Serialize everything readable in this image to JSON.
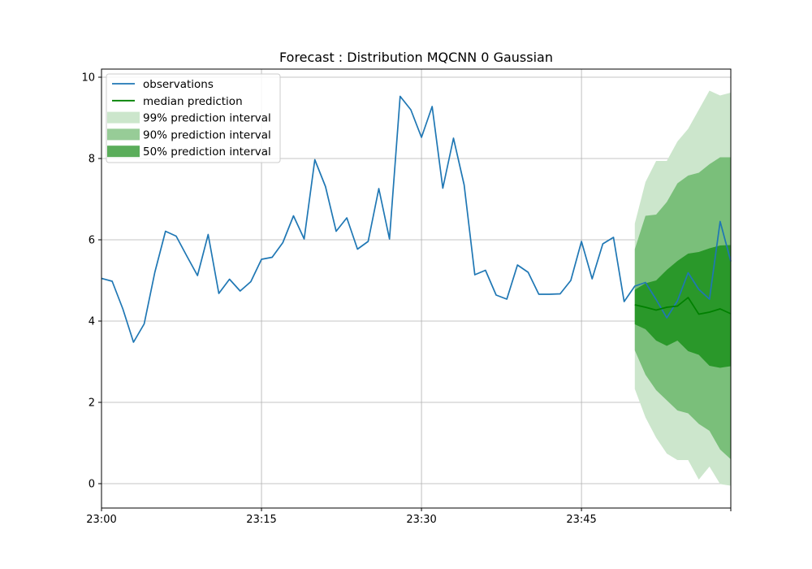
{
  "chart_data": {
    "type": "line",
    "title": "Forecast : Distribution MQCNN 0 Gaussian",
    "xlabel": "",
    "ylabel": "",
    "x_unit": "minute",
    "xlim": [
      "23:00",
      "23:59"
    ],
    "ylim": [
      -0.6,
      10.2
    ],
    "grid": true,
    "legend_position": "top-left",
    "x_ticks": [
      "23:00",
      "23:15",
      "23:30",
      "23:45"
    ],
    "y_ticks": [
      0,
      2,
      4,
      6,
      8,
      10
    ],
    "colors": {
      "observations": "#1f77b4",
      "median": "#008000",
      "interval_99": "#cce6cc",
      "interval_90": "#7abf7a",
      "interval_50": "#2a982a",
      "grid": "#b0b0b0"
    },
    "legend": [
      {
        "label": "observations",
        "kind": "line",
        "color": "#1f77b4"
      },
      {
        "label": "median prediction",
        "kind": "line",
        "color": "#008000"
      },
      {
        "label": "99% prediction interval",
        "kind": "patch",
        "color": "#cce6cc"
      },
      {
        "label": "90% prediction interval",
        "kind": "patch",
        "color": "#97cc97"
      },
      {
        "label": "50% prediction interval",
        "kind": "patch",
        "color": "#5aad5a"
      }
    ],
    "observations": {
      "name": "observations",
      "x": [
        "23:00",
        "23:01",
        "23:02",
        "23:03",
        "23:04",
        "23:05",
        "23:06",
        "23:07",
        "23:08",
        "23:09",
        "23:10",
        "23:11",
        "23:12",
        "23:13",
        "23:14",
        "23:15",
        "23:16",
        "23:17",
        "23:18",
        "23:19",
        "23:20",
        "23:21",
        "23:22",
        "23:23",
        "23:24",
        "23:25",
        "23:26",
        "23:27",
        "23:28",
        "23:29",
        "23:30",
        "23:31",
        "23:32",
        "23:33",
        "23:34",
        "23:35",
        "23:36",
        "23:37",
        "23:38",
        "23:39",
        "23:40",
        "23:41",
        "23:42",
        "23:43",
        "23:44",
        "23:45",
        "23:46",
        "23:47",
        "23:48",
        "23:49",
        "23:50",
        "23:51",
        "23:52",
        "23:53",
        "23:54",
        "23:55",
        "23:56",
        "23:57",
        "23:58",
        "23:59"
      ],
      "values": [
        5.05,
        4.98,
        4.3,
        3.48,
        3.93,
        5.2,
        6.21,
        6.09,
        5.6,
        5.12,
        6.13,
        4.68,
        5.03,
        4.74,
        4.97,
        5.52,
        5.57,
        5.93,
        6.59,
        6.02,
        7.97,
        7.31,
        6.21,
        6.54,
        5.77,
        5.96,
        7.26,
        6.02,
        9.53,
        9.2,
        8.52,
        9.28,
        7.27,
        8.5,
        7.35,
        5.14,
        5.25,
        4.64,
        4.54,
        5.38,
        5.2,
        4.66,
        4.66,
        4.67,
        5.0,
        5.96,
        5.04,
        5.9,
        6.06,
        4.48,
        4.86,
        4.95,
        4.53,
        4.08,
        4.5,
        5.19,
        4.78,
        4.54,
        6.45,
        5.47
      ]
    },
    "forecast": {
      "x": [
        "23:50",
        "23:51",
        "23:52",
        "23:53",
        "23:54",
        "23:55",
        "23:56",
        "23:57",
        "23:58",
        "23:59"
      ],
      "median": {
        "name": "median prediction",
        "values": [
          4.4,
          4.34,
          4.27,
          4.34,
          4.37,
          4.58,
          4.17,
          4.22,
          4.3,
          4.18
        ]
      },
      "intervals": [
        {
          "name": "99% prediction interval",
          "lower": [
            2.33,
            1.63,
            1.13,
            0.74,
            0.58,
            0.58,
            0.1,
            0.42,
            -0.01,
            -0.05
          ],
          "upper": [
            6.4,
            7.42,
            7.94,
            7.94,
            8.42,
            8.73,
            9.2,
            9.67,
            9.55,
            9.62
          ]
        },
        {
          "name": "90% prediction interval",
          "lower": [
            3.28,
            2.68,
            2.3,
            2.05,
            1.8,
            1.73,
            1.47,
            1.3,
            0.84,
            0.6
          ],
          "upper": [
            5.77,
            6.59,
            6.62,
            6.93,
            7.39,
            7.58,
            7.65,
            7.86,
            8.03,
            8.03
          ]
        },
        {
          "name": "50% prediction interval",
          "lower": [
            3.92,
            3.8,
            3.52,
            3.39,
            3.52,
            3.26,
            3.17,
            2.9,
            2.85,
            2.89
          ],
          "upper": [
            4.77,
            4.93,
            5.0,
            5.26,
            5.48,
            5.66,
            5.7,
            5.79,
            5.86,
            5.87
          ]
        }
      ]
    }
  }
}
